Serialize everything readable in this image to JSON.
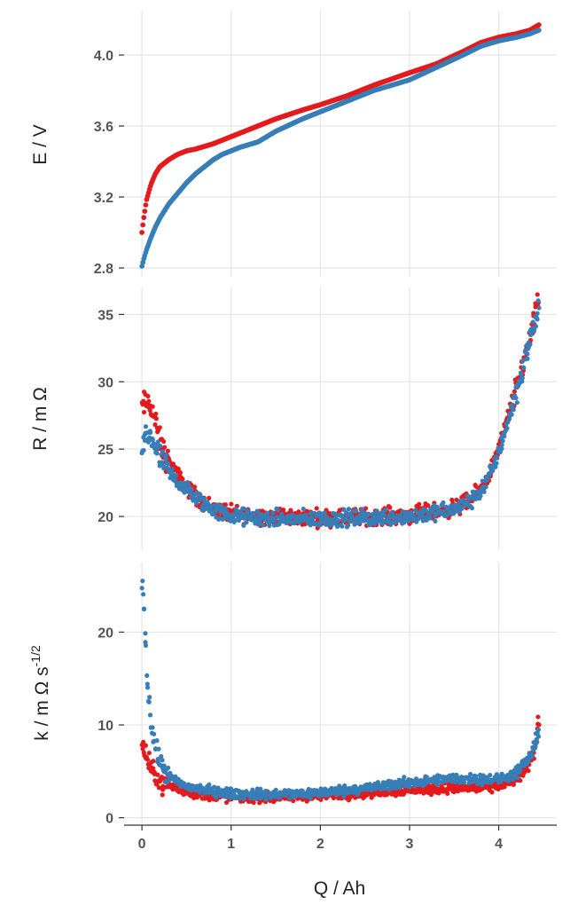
{
  "chart_data": [
    {
      "type": "scatter",
      "title": "",
      "xlabel": "",
      "ylabel": "E / V",
      "xlim": [
        -0.2,
        4.65
      ],
      "ylim": [
        2.75,
        4.25
      ],
      "x_ticks": [
        0,
        1,
        2,
        3,
        4
      ],
      "y_ticks": [
        2.8,
        3.2,
        3.6,
        4.0
      ],
      "y_tick_labels": [
        "2.8",
        "3.2",
        "3.6",
        "4.0"
      ],
      "grid": true,
      "series": [
        {
          "color": "#e41a1c",
          "x": [
            0.0,
            0.02,
            0.05,
            0.1,
            0.15,
            0.2,
            0.3,
            0.4,
            0.5,
            0.6,
            0.8,
            1.0,
            1.2,
            1.5,
            1.8,
            2.0,
            2.3,
            2.6,
            3.0,
            3.3,
            3.6,
            3.8,
            4.0,
            4.2,
            4.35,
            4.45
          ],
          "y": [
            3.0,
            3.08,
            3.18,
            3.27,
            3.33,
            3.37,
            3.41,
            3.44,
            3.46,
            3.47,
            3.5,
            3.54,
            3.58,
            3.64,
            3.69,
            3.72,
            3.77,
            3.83,
            3.9,
            3.95,
            4.02,
            4.07,
            4.1,
            4.12,
            4.14,
            4.17
          ]
        },
        {
          "color": "#377eb8",
          "x": [
            0.0,
            0.02,
            0.05,
            0.1,
            0.15,
            0.2,
            0.3,
            0.4,
            0.5,
            0.6,
            0.7,
            0.8,
            0.9,
            1.0,
            1.1,
            1.3,
            1.5,
            1.8,
            2.0,
            2.3,
            2.6,
            3.0,
            3.3,
            3.6,
            3.8,
            4.0,
            4.2,
            4.35,
            4.45
          ],
          "y": [
            2.81,
            2.85,
            2.9,
            2.97,
            3.03,
            3.08,
            3.16,
            3.22,
            3.28,
            3.33,
            3.37,
            3.41,
            3.44,
            3.46,
            3.48,
            3.51,
            3.57,
            3.64,
            3.68,
            3.74,
            3.8,
            3.86,
            3.93,
            4.0,
            4.05,
            4.08,
            4.1,
            4.12,
            4.14
          ]
        }
      ]
    },
    {
      "type": "scatter",
      "title": "",
      "xlabel": "",
      "ylabel": "R / m Ω",
      "xlim": [
        -0.2,
        4.65
      ],
      "ylim": [
        17.5,
        37.0
      ],
      "x_ticks": [
        0,
        1,
        2,
        3,
        4
      ],
      "y_ticks": [
        20,
        25,
        30,
        35
      ],
      "y_tick_labels": [
        "20",
        "25",
        "30",
        "35"
      ],
      "grid": true,
      "series": [
        {
          "color": "#e41a1c",
          "x": [
            0.0,
            0.05,
            0.1,
            0.15,
            0.2,
            0.3,
            0.4,
            0.5,
            0.6,
            0.7,
            0.8,
            1.0,
            1.5,
            2.0,
            2.5,
            3.0,
            3.5,
            3.7,
            3.8,
            3.9,
            4.0,
            4.1,
            4.2,
            4.3,
            4.4,
            4.45
          ],
          "y": [
            28.0,
            28.5,
            28.3,
            27.0,
            25.5,
            24.0,
            23.0,
            22.2,
            21.5,
            21.0,
            20.6,
            20.2,
            20.0,
            19.9,
            20.0,
            20.1,
            20.6,
            21.3,
            22.0,
            23.2,
            25.0,
            27.2,
            29.5,
            32.0,
            34.5,
            36.0
          ]
        },
        {
          "color": "#377eb8",
          "x": [
            0.0,
            0.05,
            0.1,
            0.15,
            0.2,
            0.3,
            0.4,
            0.5,
            0.6,
            0.7,
            0.8,
            1.0,
            1.5,
            2.0,
            2.5,
            3.0,
            3.5,
            3.7,
            3.8,
            3.9,
            4.0,
            4.1,
            4.2,
            4.3,
            4.4,
            4.45
          ],
          "y": [
            25.0,
            26.0,
            26.0,
            25.2,
            24.3,
            23.3,
            22.6,
            22.0,
            21.4,
            20.9,
            20.5,
            20.0,
            19.8,
            19.8,
            19.9,
            20.0,
            20.5,
            21.2,
            21.9,
            23.0,
            24.8,
            27.0,
            29.3,
            31.8,
            34.3,
            35.5
          ]
        }
      ]
    },
    {
      "type": "scatter",
      "title": "",
      "xlabel": "Q / Ah",
      "ylabel": "k / m Ω s",
      "ylabel_superscript": "-1/2",
      "xlim": [
        -0.2,
        4.65
      ],
      "ylim": [
        -0.8,
        27.5
      ],
      "x_ticks": [
        0,
        1,
        2,
        3,
        4
      ],
      "x_tick_labels": [
        "0",
        "1",
        "2",
        "3",
        "4"
      ],
      "y_ticks": [
        0,
        10,
        20
      ],
      "y_tick_labels": [
        "0",
        "10",
        "20"
      ],
      "grid": true,
      "series": [
        {
          "color": "#e41a1c",
          "x": [
            0.0,
            0.03,
            0.06,
            0.1,
            0.15,
            0.2,
            0.3,
            0.4,
            0.5,
            0.7,
            1.0,
            1.5,
            2.0,
            2.5,
            3.0,
            3.5,
            3.8,
            4.0,
            4.2,
            4.3,
            4.4,
            4.45
          ],
          "y": [
            8.0,
            7.2,
            6.2,
            5.3,
            4.6,
            4.0,
            3.5,
            3.1,
            2.8,
            2.4,
            2.2,
            2.2,
            2.4,
            2.7,
            3.0,
            3.2,
            3.2,
            3.4,
            4.2,
            5.2,
            7.3,
            10.5
          ]
        },
        {
          "color": "#377eb8",
          "x": [
            0.0,
            0.02,
            0.04,
            0.06,
            0.08,
            0.1,
            0.12,
            0.15,
            0.2,
            0.25,
            0.3,
            0.4,
            0.5,
            0.7,
            1.0,
            1.5,
            2.0,
            2.5,
            3.0,
            3.5,
            3.8,
            4.0,
            4.2,
            4.3,
            4.4,
            4.45
          ],
          "y": [
            26.0,
            23.8,
            19.0,
            15.0,
            12.2,
            10.5,
            9.2,
            7.6,
            6.0,
            5.1,
            4.5,
            3.8,
            3.4,
            3.0,
            2.6,
            2.5,
            2.7,
            3.2,
            3.8,
            4.2,
            4.2,
            4.1,
            4.8,
            5.8,
            7.5,
            9.0
          ]
        }
      ]
    }
  ]
}
